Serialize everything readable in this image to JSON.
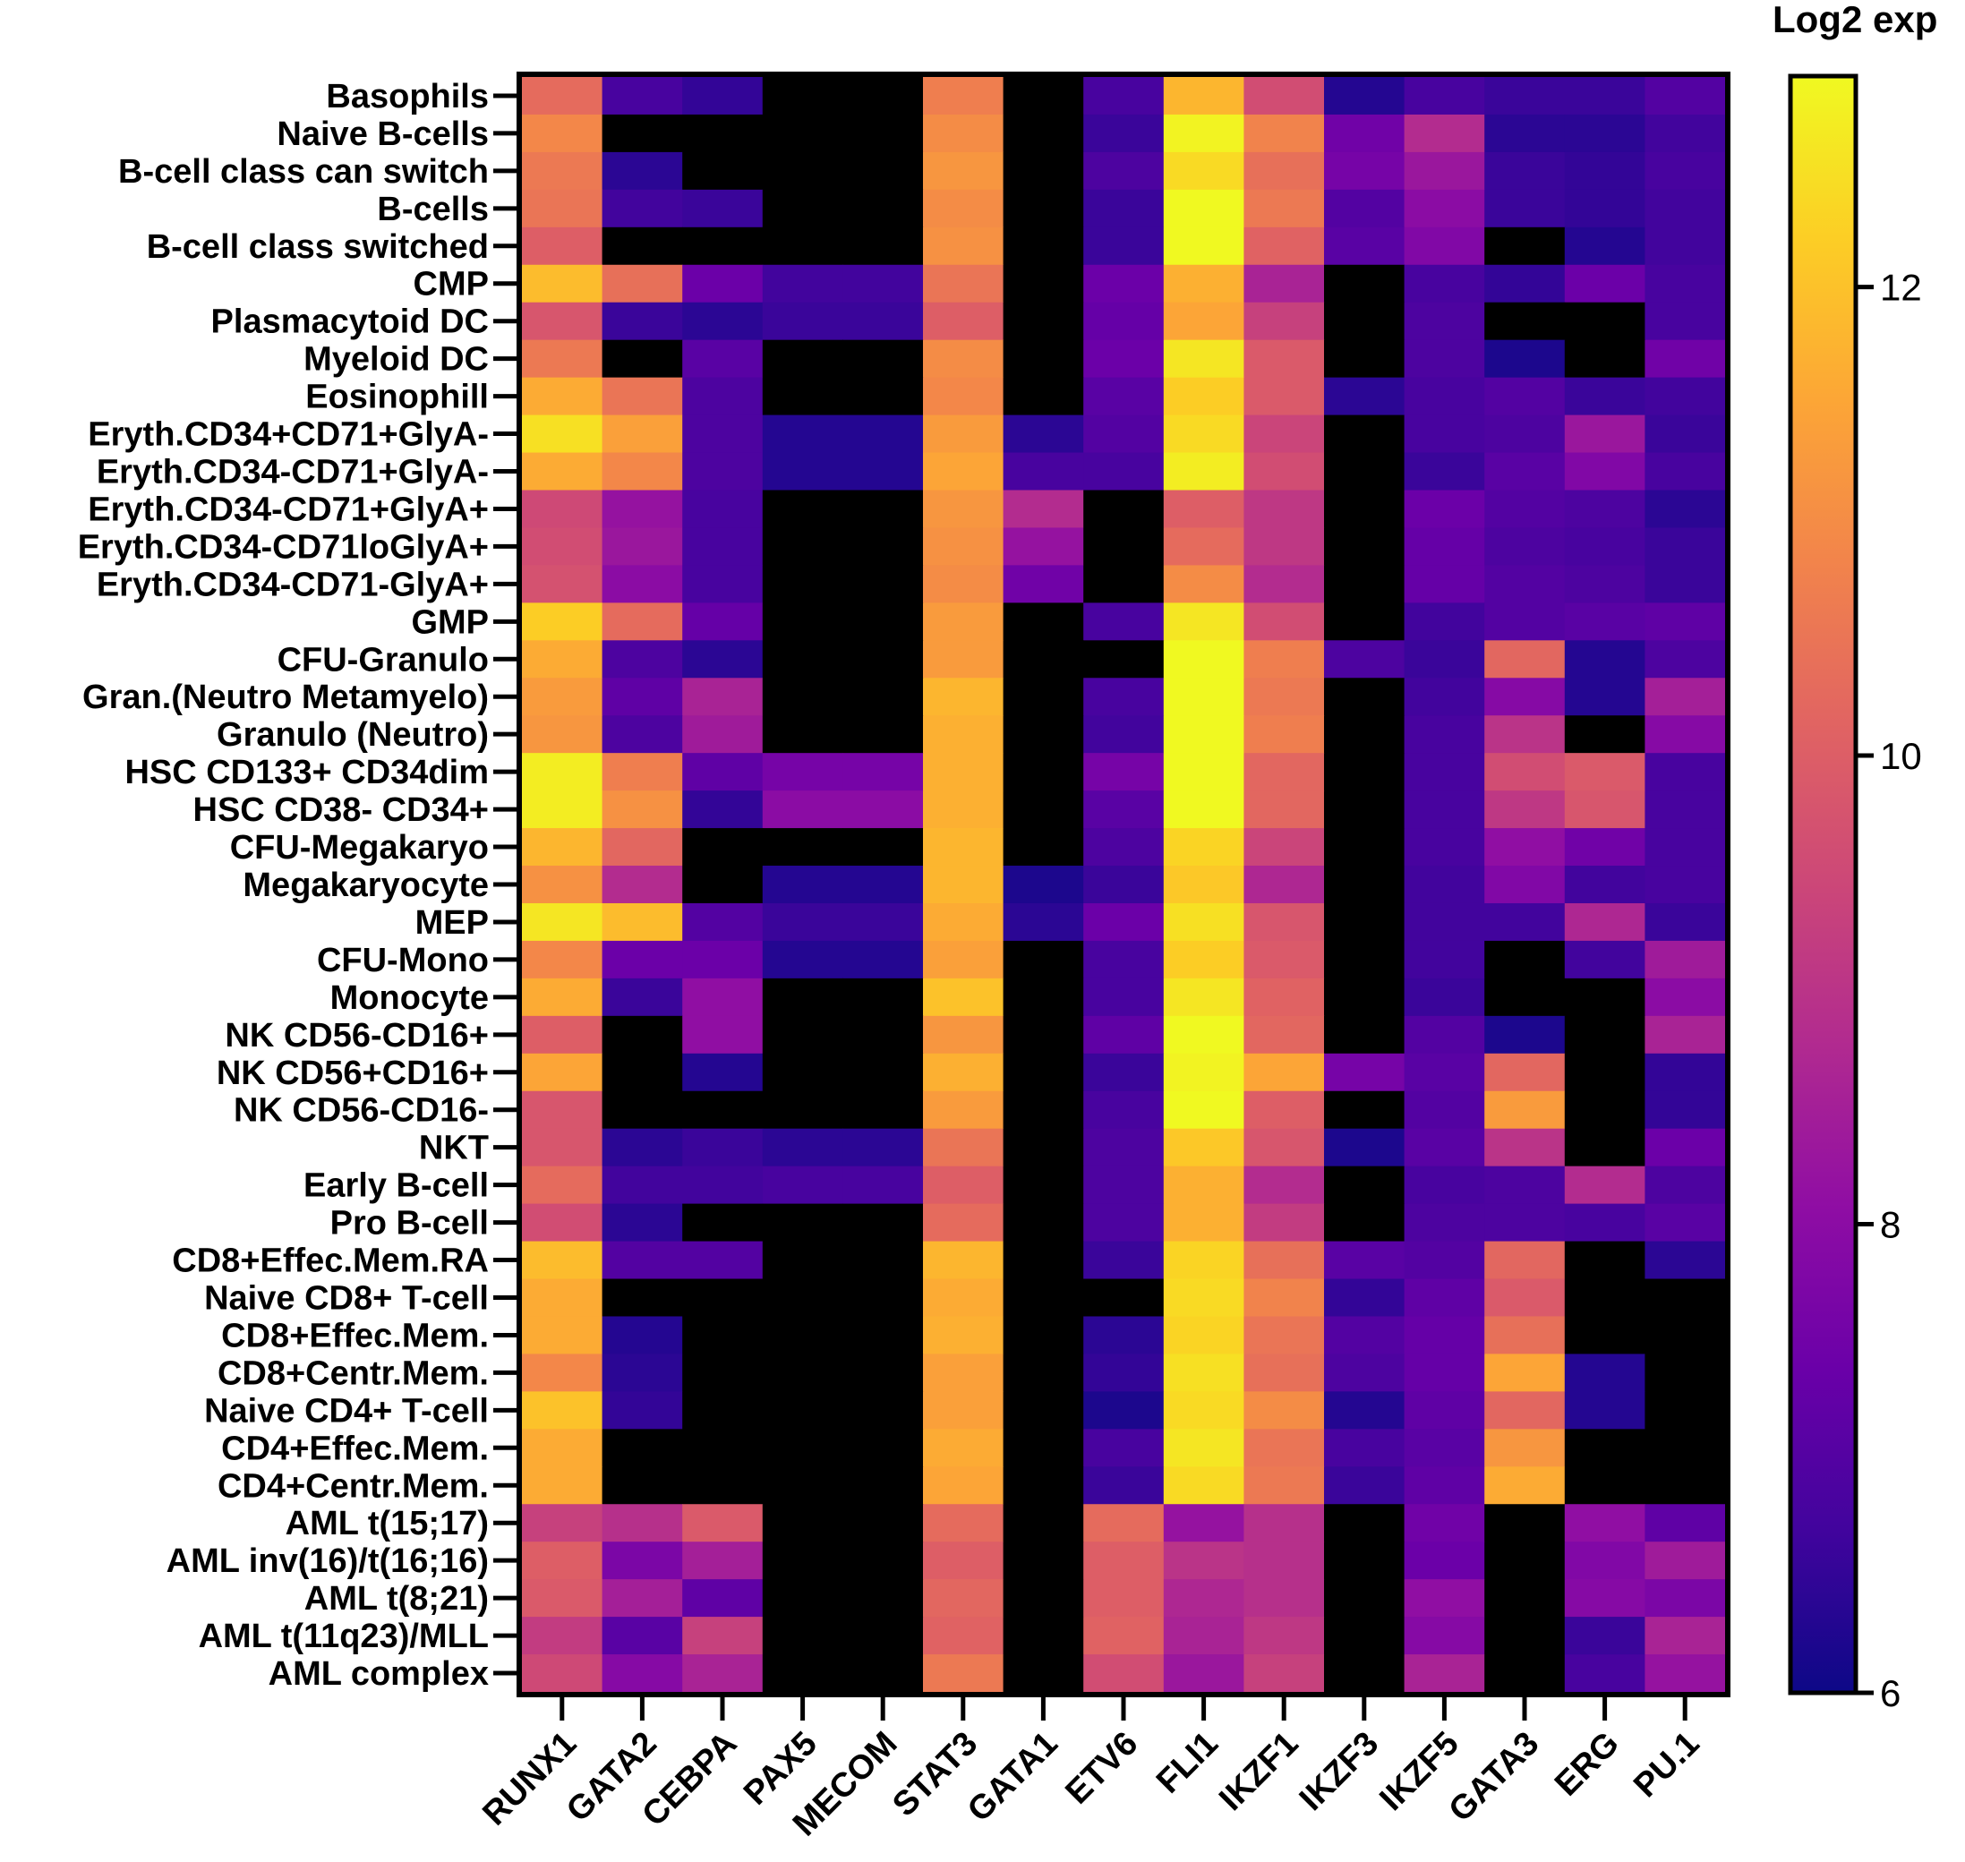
{
  "chart_data": {
    "type": "heatmap",
    "title": "",
    "colorbar": {
      "title": "Log2 exp",
      "min": 6,
      "max": 12.9,
      "ticks": [
        6,
        8,
        10,
        12
      ],
      "colormap": "plasma"
    },
    "columns": [
      "RUNX1",
      "GATA2",
      "CEBPA",
      "PAX5",
      "MECOM",
      "STAT3",
      "GATA1",
      "ETV6",
      "FLI1",
      "IKZF1",
      "IKZF3",
      "IKZF5",
      "GATA3",
      "ERG",
      "PU.1"
    ],
    "rows": [
      {
        "label": "Basophils",
        "values": [
          10.3,
          6.8,
          6.5,
          null,
          null,
          10.7,
          null,
          6.8,
          11.8,
          9.6,
          6.3,
          6.8,
          6.6,
          6.6,
          7.0
        ]
      },
      {
        "label": "Naive B-cells",
        "values": [
          10.9,
          null,
          null,
          null,
          null,
          11.0,
          null,
          6.6,
          12.8,
          10.8,
          7.5,
          8.8,
          6.4,
          6.4,
          6.7
        ]
      },
      {
        "label": "B-cell class can switch",
        "values": [
          10.6,
          6.4,
          null,
          null,
          null,
          11.2,
          null,
          6.9,
          12.4,
          10.4,
          7.6,
          8.3,
          6.6,
          6.5,
          6.8
        ]
      },
      {
        "label": "B-cells",
        "values": [
          10.5,
          6.7,
          6.6,
          null,
          null,
          11.0,
          null,
          6.6,
          12.9,
          10.6,
          7.0,
          8.0,
          6.6,
          6.5,
          6.7
        ]
      },
      {
        "label": "B-cell class switched",
        "values": [
          10.0,
          null,
          null,
          null,
          null,
          11.1,
          null,
          6.6,
          12.9,
          10.1,
          7.1,
          7.8,
          null,
          6.3,
          6.7
        ]
      },
      {
        "label": "CMP",
        "values": [
          11.9,
          10.4,
          7.4,
          6.7,
          6.7,
          10.5,
          null,
          7.4,
          11.7,
          8.6,
          null,
          6.8,
          6.5,
          7.4,
          6.8
        ]
      },
      {
        "label": "Plasmacytoid DC",
        "values": [
          9.8,
          6.6,
          6.4,
          6.6,
          6.6,
          10.0,
          null,
          7.3,
          11.5,
          9.3,
          null,
          6.9,
          null,
          null,
          6.8
        ]
      },
      {
        "label": "Myeloid DC",
        "values": [
          10.6,
          null,
          7.1,
          null,
          null,
          11.0,
          null,
          7.4,
          12.6,
          9.9,
          null,
          6.9,
          6.2,
          null,
          7.5
        ]
      },
      {
        "label": "Eosinophill",
        "values": [
          11.6,
          10.5,
          6.9,
          null,
          null,
          10.9,
          null,
          7.1,
          12.2,
          9.9,
          6.4,
          6.8,
          7.0,
          6.6,
          6.7
        ]
      },
      {
        "label": "Eryth.CD34+CD71+GlyA-",
        "values": [
          12.5,
          11.4,
          6.9,
          6.3,
          6.3,
          11.3,
          6.4,
          7.0,
          12.4,
          9.4,
          null,
          6.8,
          6.9,
          8.3,
          6.6
        ]
      },
      {
        "label": "Eryth.CD34-CD71+GlyA-",
        "values": [
          11.6,
          10.9,
          6.9,
          6.3,
          6.3,
          11.5,
          6.8,
          6.8,
          12.7,
          9.6,
          null,
          6.6,
          7.1,
          7.8,
          6.8
        ]
      },
      {
        "label": "Eryth.CD34-CD71+GlyA+",
        "values": [
          9.5,
          8.2,
          6.8,
          null,
          null,
          11.2,
          8.8,
          null,
          10.0,
          9.1,
          null,
          7.4,
          7.0,
          6.9,
          6.4
        ]
      },
      {
        "label": "Eryth.CD34-CD71loGlyA+",
        "values": [
          9.6,
          8.3,
          6.8,
          null,
          null,
          11.1,
          8.2,
          null,
          10.3,
          9.1,
          null,
          7.3,
          6.9,
          6.8,
          6.6
        ]
      },
      {
        "label": "Eryth.CD34-CD71-GlyA+",
        "values": [
          9.7,
          8.0,
          6.8,
          null,
          null,
          11.0,
          7.5,
          null,
          11.0,
          8.8,
          null,
          7.3,
          7.0,
          6.9,
          6.6
        ]
      },
      {
        "label": "GMP",
        "values": [
          12.2,
          10.3,
          7.3,
          null,
          null,
          11.3,
          null,
          6.8,
          12.6,
          9.6,
          null,
          6.7,
          7.0,
          7.1,
          7.2
        ]
      },
      {
        "label": "CFU-Granulo",
        "values": [
          11.6,
          6.9,
          6.4,
          null,
          null,
          11.3,
          null,
          null,
          12.9,
          10.7,
          6.9,
          6.6,
          10.2,
          6.3,
          6.9
        ]
      },
      {
        "label": "Gran.(Neutro Metamyelo)",
        "values": [
          11.3,
          7.2,
          8.6,
          null,
          null,
          11.8,
          null,
          6.8,
          12.9,
          10.6,
          null,
          6.7,
          7.9,
          6.3,
          8.5
        ]
      },
      {
        "label": "Granulo (Neutro)",
        "values": [
          11.2,
          6.9,
          8.4,
          null,
          null,
          11.7,
          null,
          6.7,
          12.9,
          10.7,
          null,
          6.8,
          9.0,
          null,
          7.9
        ]
      },
      {
        "label": "HSC CD133+ CD34dim",
        "values": [
          12.7,
          10.7,
          7.2,
          7.6,
          7.6,
          11.7,
          null,
          7.6,
          12.9,
          10.2,
          null,
          6.8,
          9.6,
          9.9,
          6.8
        ]
      },
      {
        "label": "HSC CD38- CD34+",
        "values": [
          12.7,
          11.1,
          6.5,
          8.0,
          8.0,
          11.7,
          null,
          7.1,
          12.9,
          10.2,
          null,
          6.8,
          9.1,
          9.8,
          6.8
        ]
      },
      {
        "label": "CFU-Megakaryo",
        "values": [
          11.8,
          10.2,
          null,
          null,
          null,
          11.8,
          null,
          6.9,
          12.3,
          9.4,
          null,
          6.8,
          8.1,
          7.5,
          6.8
        ]
      },
      {
        "label": "Megakaryocyte",
        "values": [
          11.1,
          8.8,
          null,
          6.3,
          6.3,
          11.8,
          6.2,
          6.6,
          12.1,
          8.7,
          null,
          6.7,
          7.8,
          6.7,
          6.8
        ]
      },
      {
        "label": "MEP",
        "values": [
          12.6,
          11.9,
          7.0,
          6.6,
          6.6,
          11.6,
          6.4,
          7.4,
          12.5,
          9.8,
          null,
          6.7,
          6.7,
          8.7,
          6.6
        ]
      },
      {
        "label": "CFU-Mono",
        "values": [
          10.9,
          7.4,
          7.4,
          6.3,
          6.3,
          11.4,
          null,
          6.8,
          12.2,
          9.9,
          null,
          6.7,
          null,
          6.7,
          8.4
        ]
      },
      {
        "label": "Monocyte",
        "values": [
          11.6,
          6.6,
          8.1,
          null,
          null,
          12.0,
          null,
          6.8,
          12.6,
          10.1,
          null,
          6.6,
          null,
          null,
          8.0
        ]
      },
      {
        "label": "NK CD56-CD16+",
        "values": [
          10.0,
          null,
          8.1,
          null,
          null,
          11.2,
          null,
          7.2,
          12.9,
          10.2,
          null,
          7.0,
          6.2,
          null,
          8.6
        ]
      },
      {
        "label": "NK CD56+CD16+",
        "values": [
          11.5,
          null,
          6.3,
          null,
          null,
          11.7,
          null,
          6.6,
          12.8,
          11.5,
          7.6,
          7.1,
          10.2,
          null,
          6.5
        ]
      },
      {
        "label": "NK CD56-CD16-",
        "values": [
          9.8,
          null,
          null,
          null,
          null,
          11.3,
          null,
          6.8,
          12.9,
          10.0,
          null,
          7.0,
          11.3,
          null,
          6.5
        ]
      },
      {
        "label": "NKT",
        "values": [
          9.8,
          6.4,
          6.6,
          6.4,
          6.4,
          10.5,
          null,
          6.9,
          12.1,
          9.8,
          6.2,
          7.1,
          9.0,
          null,
          7.4
        ]
      },
      {
        "label": "Early B-cell",
        "values": [
          10.3,
          6.7,
          6.7,
          6.8,
          6.8,
          10.0,
          null,
          6.9,
          11.7,
          8.8,
          null,
          6.8,
          6.9,
          8.8,
          6.9
        ]
      },
      {
        "label": "Pro B-cell",
        "values": [
          9.6,
          6.4,
          null,
          null,
          null,
          10.3,
          null,
          6.9,
          11.7,
          9.2,
          null,
          6.9,
          6.9,
          6.8,
          7.1
        ]
      },
      {
        "label": "CD8+Effec.Mem.RA",
        "values": [
          11.9,
          7.0,
          7.0,
          null,
          null,
          11.8,
          null,
          6.6,
          12.3,
          10.4,
          7.1,
          7.0,
          10.2,
          null,
          6.4
        ]
      },
      {
        "label": "Naive CD8+ T-cell",
        "values": [
          11.6,
          null,
          null,
          null,
          null,
          11.6,
          null,
          null,
          12.4,
          10.8,
          6.5,
          7.2,
          9.9,
          null,
          null
        ]
      },
      {
        "label": "CD8+Effec.Mem.",
        "values": [
          11.6,
          6.3,
          null,
          null,
          null,
          11.7,
          null,
          6.4,
          12.3,
          10.5,
          7.0,
          7.3,
          10.4,
          null,
          null
        ]
      },
      {
        "label": "CD8+Centr.Mem.",
        "values": [
          10.9,
          6.4,
          null,
          null,
          null,
          11.4,
          null,
          6.5,
          12.5,
          10.4,
          6.9,
          7.3,
          11.5,
          6.3,
          null
        ]
      },
      {
        "label": "Naive CD4+ T-cell",
        "values": [
          12.0,
          6.5,
          null,
          null,
          null,
          11.4,
          null,
          6.2,
          12.4,
          11.0,
          6.3,
          7.2,
          10.2,
          6.3,
          null
        ]
      },
      {
        "label": "CD4+Effec.Mem.",
        "values": [
          11.6,
          null,
          null,
          null,
          null,
          11.6,
          null,
          6.8,
          12.6,
          10.5,
          6.8,
          7.1,
          11.2,
          null,
          null
        ]
      },
      {
        "label": "CD4+Centr.Mem.",
        "values": [
          11.6,
          null,
          null,
          null,
          null,
          11.5,
          null,
          6.6,
          12.4,
          10.6,
          6.6,
          7.2,
          11.6,
          null,
          null
        ]
      },
      {
        "label": "AML t(15;17)",
        "values": [
          9.3,
          8.9,
          9.9,
          null,
          null,
          10.3,
          null,
          10.3,
          8.2,
          8.9,
          null,
          7.5,
          null,
          8.1,
          7.2
        ]
      },
      {
        "label": "AML inv(16)/t(16;16)",
        "values": [
          10.0,
          7.7,
          8.5,
          null,
          null,
          10.0,
          null,
          10.0,
          9.0,
          8.9,
          null,
          7.4,
          null,
          7.8,
          8.4
        ]
      },
      {
        "label": "AML t(8;21)",
        "values": [
          9.9,
          8.5,
          7.2,
          null,
          null,
          10.2,
          null,
          10.0,
          8.7,
          8.9,
          null,
          8.1,
          null,
          7.9,
          7.7
        ]
      },
      {
        "label": "AML t(11q23)/MLL",
        "values": [
          9.2,
          7.1,
          9.3,
          null,
          null,
          10.1,
          null,
          10.1,
          8.6,
          9.1,
          null,
          7.9,
          null,
          6.6,
          8.6
        ]
      },
      {
        "label": "AML complex",
        "values": [
          9.5,
          7.9,
          8.6,
          null,
          null,
          10.6,
          null,
          9.6,
          8.3,
          9.3,
          null,
          8.6,
          null,
          6.8,
          8.2
        ]
      }
    ]
  }
}
